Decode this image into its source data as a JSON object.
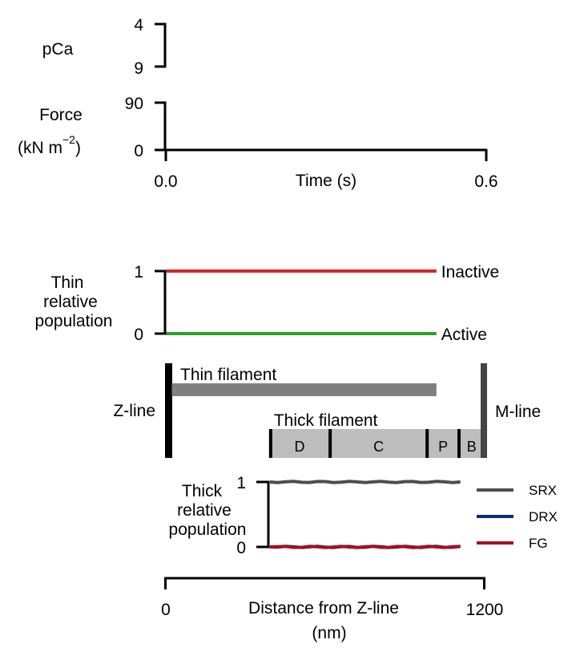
{
  "colors": {
    "axis": "#000000",
    "inactive": "#d62728",
    "active": "#2ca02c",
    "thin_filament": "#7f7f7f",
    "thick_filament": "#bdbdbd",
    "mline": "#444444",
    "srx": "#4d4d4d",
    "drx": "#0b2a78",
    "fg": "#a50f24"
  },
  "chart_data": [
    {
      "type": "line",
      "panel": "pCa",
      "ylabel": "pCa",
      "yticks": [
        "4",
        "9"
      ],
      "ylim": [
        9,
        4
      ],
      "series": []
    },
    {
      "type": "line",
      "panel": "force",
      "ylabel_line1": "Force",
      "ylabel_line2_prefix": "(kN m",
      "ylabel_sup": "−2",
      "ylabel_line2_suffix": ")",
      "yticks": [
        "90",
        "0"
      ],
      "ylim": [
        0,
        90
      ],
      "xlabel": "Time (s)",
      "xticks": [
        "0.0",
        "0.6"
      ],
      "xlim": [
        0.0,
        0.6
      ],
      "series": []
    },
    {
      "type": "line",
      "panel": "thin-population",
      "ylabel_lines": [
        "Thin",
        "relative",
        "population"
      ],
      "yticks": [
        "1",
        "0"
      ],
      "ylim": [
        0,
        1
      ],
      "xlim": [
        0,
        1200
      ],
      "series": [
        {
          "name": "Inactive",
          "x": [
            0,
            1020
          ],
          "y": [
            1,
            1
          ]
        },
        {
          "name": "Active",
          "x": [
            0,
            1020
          ],
          "y": [
            0,
            0
          ]
        }
      ]
    },
    {
      "type": "diagram",
      "panel": "sarcomere",
      "labels": {
        "zline": "Z-line",
        "mline": "M-line",
        "thin": "Thin filament",
        "thick": "Thick filament"
      },
      "thin_filament_range": [
        0,
        1020
      ],
      "thick_filament_range": [
        390,
        1200
      ],
      "zones": [
        {
          "label": "D",
          "start": 390,
          "end": 620
        },
        {
          "label": "C",
          "start": 620,
          "end": 985
        },
        {
          "label": "P",
          "start": 985,
          "end": 1105
        },
        {
          "label": "B",
          "start": 1105,
          "end": 1200
        }
      ]
    },
    {
      "type": "line",
      "panel": "thick-population",
      "ylabel_lines": [
        "Thick",
        "relative",
        "population"
      ],
      "yticks": [
        "1",
        "0"
      ],
      "ylim": [
        0,
        1
      ],
      "xlabel_lines": [
        "Distance from Z-line",
        "(nm)"
      ],
      "xticks": [
        "0",
        "1200"
      ],
      "xlim": [
        0,
        1200
      ],
      "legend": "right",
      "series": [
        {
          "name": "SRX",
          "x": [
            390,
            1110
          ],
          "y": [
            1,
            1
          ]
        },
        {
          "name": "DRX",
          "x": [
            390,
            1110
          ],
          "y": [
            0,
            0
          ]
        },
        {
          "name": "FG",
          "x": [
            390,
            1110
          ],
          "y": [
            0,
            0
          ]
        }
      ]
    }
  ]
}
